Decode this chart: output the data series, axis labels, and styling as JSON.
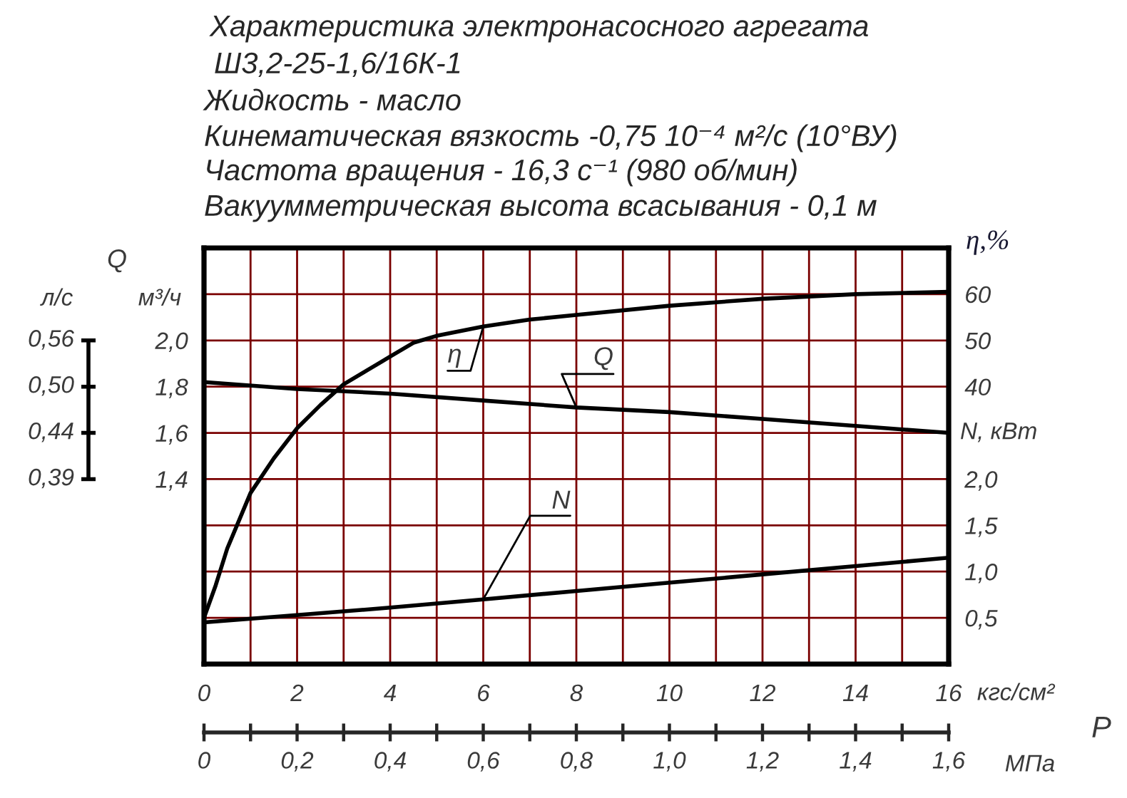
{
  "chart_data": {
    "type": "line",
    "title": "Характеристика электронасосного агрегата",
    "subtitle": "Ш3,2-25-1,6/16К-1",
    "annotations": [
      "Жидкость - масло",
      "Кинематическая вязкость -0,75 10⁻⁴ м²/с (10°ВУ)",
      "Частота вращения - 16,3 с⁻¹ (980 об/мин)",
      "Вакуумметрическая высота всасывания - 0,1 м",
      "Q",
      "P",
      "л/с",
      "0,56",
      "0,50",
      "0,44",
      "0,39"
    ],
    "xlabel": "кгс/см²",
    "x2label": "МПа",
    "ylabel": "м³/ч",
    "y2label": "η,%",
    "y3label": "N, кВт",
    "xlim": [
      0,
      16
    ],
    "xticks": [
      0,
      {
        "value": 1,
        "label": null
      },
      2,
      {
        "value": 3,
        "label": null
      },
      4,
      {
        "value": 5,
        "label": null
      },
      6,
      {
        "value": 7,
        "label": null
      },
      8,
      {
        "value": 9,
        "label": null
      },
      10,
      {
        "value": 11,
        "label": null
      },
      12,
      {
        "value": 13,
        "label": null
      },
      14,
      {
        "value": 15,
        "label": null
      },
      16
    ],
    "x2lim": [
      0,
      1.6
    ],
    "x2ticks": [
      0,
      {
        "value": 0.1,
        "label": null
      },
      {
        "value": 0.2,
        "label": "0,2"
      },
      {
        "value": 0.3,
        "label": null
      },
      {
        "value": 0.4,
        "label": "0,4"
      },
      {
        "value": 0.5,
        "label": null
      },
      {
        "value": 0.6,
        "label": "0,6"
      },
      {
        "value": 0.7,
        "label": null
      },
      {
        "value": 0.8,
        "label": "0,8"
      },
      {
        "value": 0.9,
        "label": null
      },
      {
        "value": 1.0,
        "label": "1,0"
      },
      {
        "value": 1.1,
        "label": null
      },
      {
        "value": 1.2,
        "label": "1,2"
      },
      {
        "value": 1.3,
        "label": null
      },
      {
        "value": 1.4,
        "label": "1,4"
      },
      {
        "value": 1.5,
        "label": null
      },
      {
        "value": 1.6,
        "label": "1,6"
      }
    ],
    "ylim": [
      0.6,
      2.4
    ],
    "yticks": [
      {
        "value": 0.8,
        "label": null
      },
      {
        "value": 1.0,
        "label": null
      },
      {
        "value": 1.2,
        "label": null
      },
      {
        "value": 1.4,
        "label": "1,4"
      },
      {
        "value": 1.6,
        "label": "1,6"
      },
      {
        "value": 1.8,
        "label": "1,8"
      },
      {
        "value": 2.0,
        "label": "2,0"
      },
      {
        "value": 2.2,
        "label": null
      }
    ],
    "y2lim": [
      -20,
      70
    ],
    "y2ticks": [
      40,
      50,
      60
    ],
    "y3lim": [
      0,
      4.5
    ],
    "y3ticks": [
      {
        "value": 0.5,
        "label": "0,5"
      },
      {
        "value": 1.0,
        "label": "1,0"
      },
      {
        "value": 1.5,
        "label": "1,5"
      },
      {
        "value": 2.0,
        "label": "2,0"
      }
    ],
    "grid": true,
    "series": [
      {
        "name": "η",
        "color": "#000000",
        "axis": "y2",
        "x": [
          0,
          0.25,
          0.5,
          1,
          1.5,
          2,
          2.5,
          3,
          3.5,
          4,
          4.5,
          5,
          6,
          7,
          8,
          10,
          12,
          14,
          16
        ],
        "values": [
          -10,
          -3,
          5,
          17,
          24.5,
          31,
          36,
          40.5,
          43.5,
          46.5,
          49.5,
          51,
          53,
          54.5,
          55.5,
          57.5,
          59,
          60,
          60.5
        ]
      },
      {
        "name": "Q",
        "color": "#000000",
        "x": [
          0,
          2,
          4,
          6,
          8,
          10,
          12,
          14,
          16
        ],
        "values": [
          1.82,
          1.79,
          1.77,
          1.74,
          1.71,
          1.69,
          1.66,
          1.63,
          1.6
        ]
      },
      {
        "name": "N",
        "color": "#000000",
        "axis": "y3",
        "x": [
          0,
          2,
          4,
          6,
          8,
          10,
          12,
          14,
          16
        ],
        "values": [
          0.45,
          0.53,
          0.61,
          0.7,
          0.79,
          0.88,
          0.97,
          1.06,
          1.15
        ]
      }
    ]
  }
}
